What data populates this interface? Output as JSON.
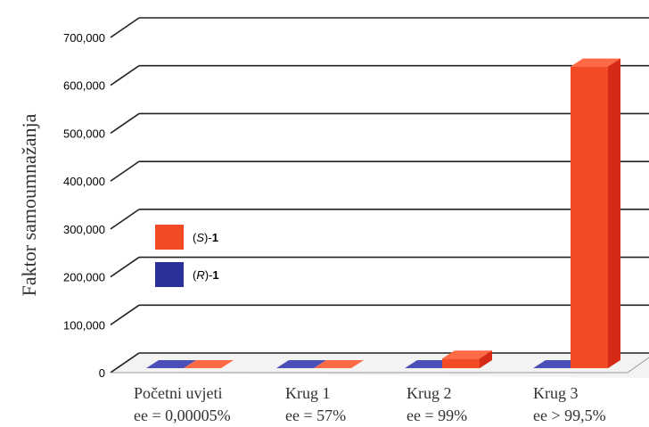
{
  "chart_data": {
    "type": "bar",
    "title": "",
    "ylabel": "Faktor samoumnažanja",
    "xlabel": "",
    "ylim": [
      0,
      700000
    ],
    "yticks": [
      "0",
      "100,000",
      "200,000",
      "300,000",
      "400,000",
      "500,000",
      "600,000",
      "700,000"
    ],
    "categories": [
      {
        "line1": "Početni uvjeti",
        "line2": "ee = 0,00005%"
      },
      {
        "line1": "Krug 1",
        "line2": "ee = 57%"
      },
      {
        "line1": "Krug 2",
        "line2": "ee = 99%"
      },
      {
        "line1": "Krug 3",
        "line2": "ee > 99,5%"
      }
    ],
    "series": [
      {
        "name": "(R)-1",
        "name_italic": "R",
        "values": [
          0,
          0,
          0,
          0
        ],
        "color": "#2a2f9a",
        "side": "#1c2070",
        "top": "#4a50b8"
      },
      {
        "name": "(S)-1",
        "name_italic": "S",
        "values": [
          0,
          0,
          20000,
          630000
        ],
        "color": "#f24a25",
        "side": "#d62a16",
        "top": "#ff6a45"
      }
    ],
    "legend": {
      "placement": "left",
      "order": [
        "(S)-1",
        "(R)-1"
      ]
    },
    "grid": true
  }
}
